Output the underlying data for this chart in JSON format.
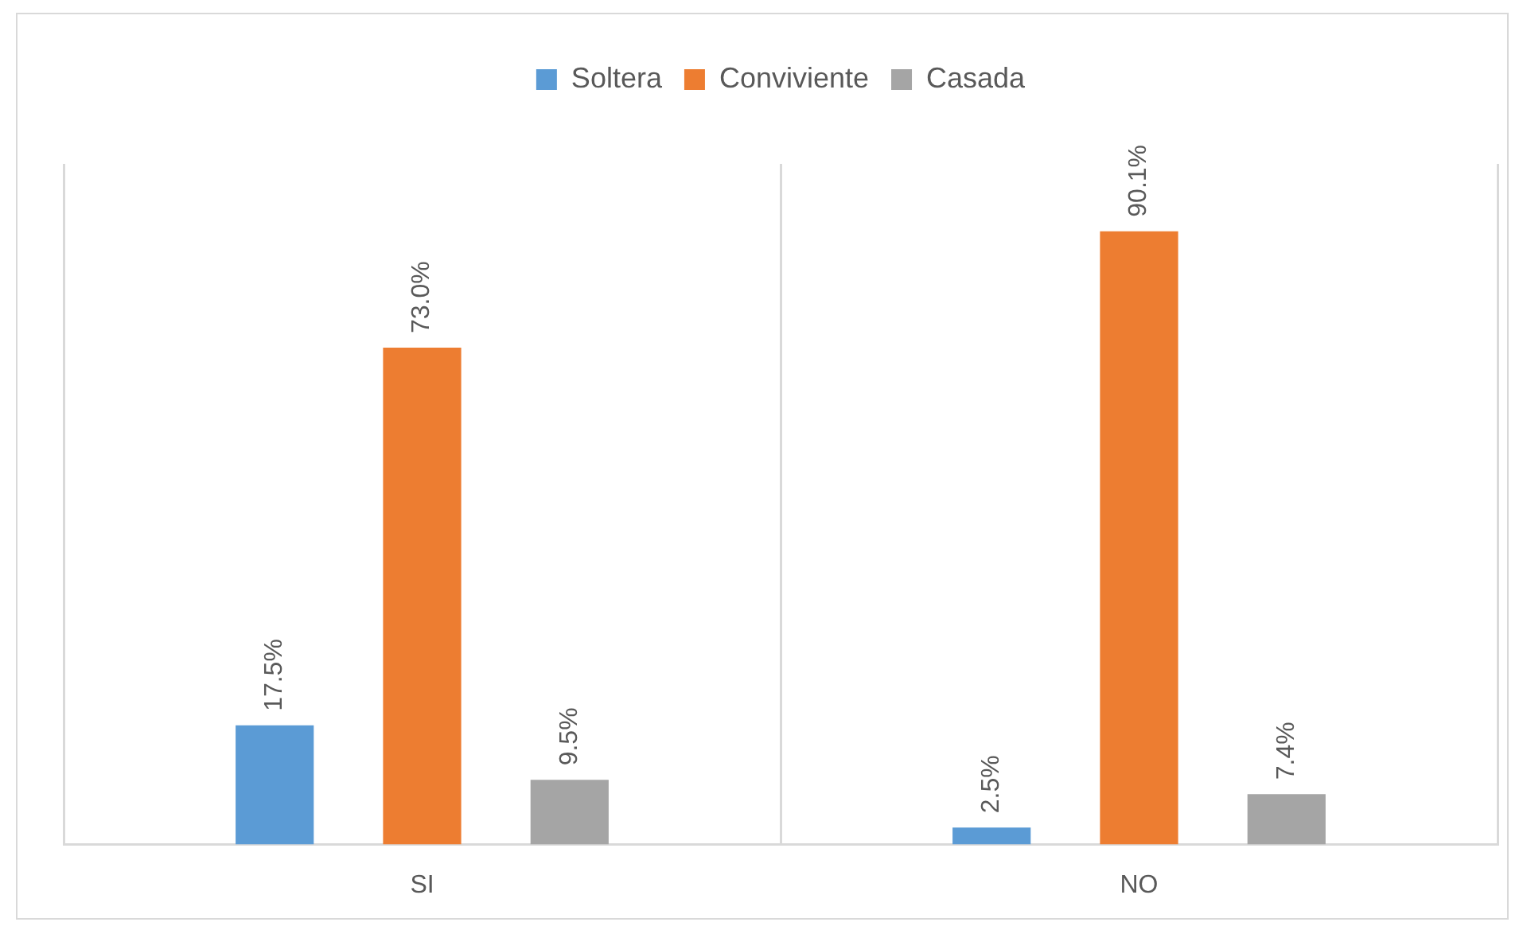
{
  "chart_data": {
    "type": "bar",
    "categories": [
      "SI",
      "NO"
    ],
    "series": [
      {
        "name": "Soltera",
        "color": "#5b9bd5",
        "values": [
          17.5,
          2.5
        ],
        "value_labels": [
          "17.5%",
          "2.5%"
        ]
      },
      {
        "name": "Conviviente",
        "color": "#ed7d31",
        "values": [
          73.0,
          90.1
        ],
        "value_labels": [
          "73.0%",
          "90.1%"
        ]
      },
      {
        "name": "Casada",
        "color": "#a5a5a5",
        "values": [
          9.5,
          7.4
        ],
        "value_labels": [
          "9.5%",
          "7.4%"
        ]
      }
    ],
    "ylim": [
      0,
      100
    ],
    "tick_labels": "x",
    "grid": "x",
    "legend": "top"
  }
}
